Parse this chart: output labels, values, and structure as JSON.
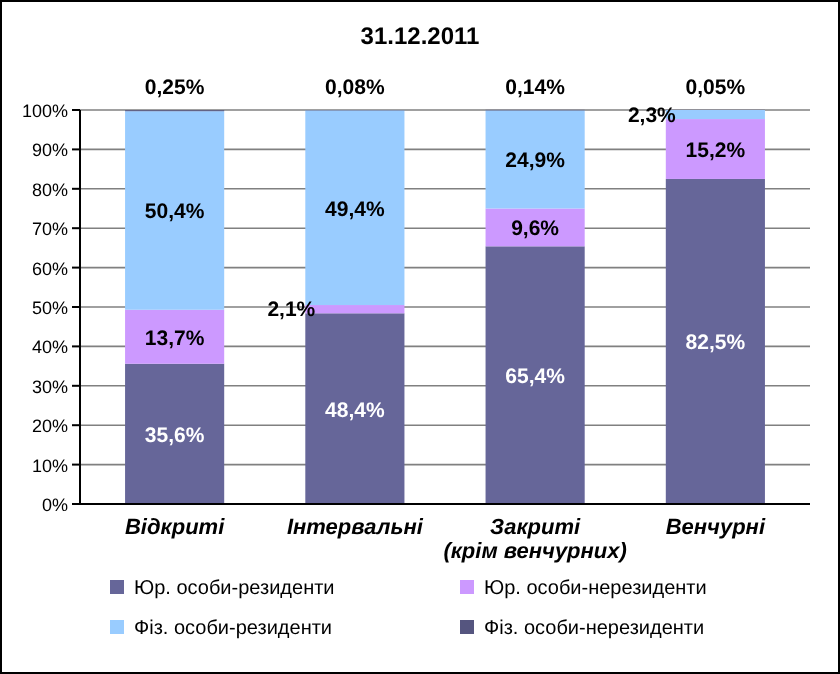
{
  "chart_data": {
    "type": "bar",
    "title": "31.12.2011",
    "stacked": true,
    "categories": [
      "Відкриті",
      "Інтервальні",
      "Закриті (крім венчурних)",
      "Венчурні"
    ],
    "series": [
      {
        "name": "Юр. особи-резиденти",
        "color": "#666699",
        "values": [
          35.6,
          48.4,
          65.4,
          82.5
        ],
        "value_labels": [
          "35,6%",
          "48,4%",
          "65,4%",
          "82,5%"
        ]
      },
      {
        "name": "Юр. особи-нерезиденти",
        "color": "#cc99ff",
        "values": [
          13.7,
          2.1,
          9.6,
          15.2
        ],
        "value_labels": [
          "13,7%",
          "2,1%",
          "9,6%",
          "15,2%"
        ]
      },
      {
        "name": "Фіз. особи-резиденти",
        "color": "#99ccff",
        "values": [
          50.4,
          49.4,
          24.9,
          2.3
        ],
        "value_labels": [
          "50,4%",
          "49,4%",
          "24,9%",
          "2,3%"
        ]
      },
      {
        "name": "Фіз. особи-нерезиденти",
        "color": "#55557f",
        "values": [
          0.25,
          0.08,
          0.14,
          0.05
        ],
        "value_labels": [
          "0,25%",
          "0,08%",
          "0,14%",
          "0,05%"
        ]
      }
    ],
    "ylim": [
      0,
      100
    ],
    "yticks": [
      {
        "value": 0,
        "label": "0%"
      },
      {
        "value": 10,
        "label": "10%"
      },
      {
        "value": 20,
        "label": "20%"
      },
      {
        "value": 30,
        "label": "30%"
      },
      {
        "value": 40,
        "label": "40%"
      },
      {
        "value": 50,
        "label": "50%"
      },
      {
        "value": 60,
        "label": "60%"
      },
      {
        "value": 70,
        "label": "70%"
      },
      {
        "value": 80,
        "label": "80%"
      },
      {
        "value": 90,
        "label": "90%"
      },
      {
        "value": 100,
        "label": "100%"
      }
    ],
    "grid": "y",
    "legend": "bottom"
  }
}
